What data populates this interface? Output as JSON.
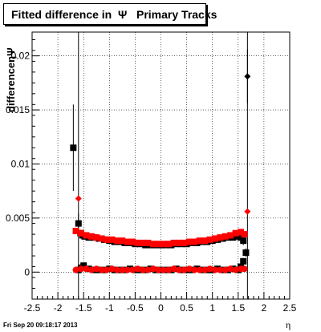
{
  "title": "Fitted difference in  Ψ   Primary Tracks",
  "footer": "Fri Sep 20 09:18:17 2013",
  "chart_data": {
    "type": "scatter",
    "title": "Fitted difference in  Ψ   Primary Tracks",
    "xlabel": "η",
    "ylabel": "differenceηΨ",
    "xlim": [
      -2.5,
      2.5
    ],
    "ylim": [
      -0.0025,
      0.0222
    ],
    "grid": true,
    "x_ticks": [
      -2.5,
      -2,
      -1.5,
      -1,
      -0.5,
      0,
      0.5,
      1,
      1.5,
      2,
      2.5
    ],
    "x_tick_labels": [
      "-2.5",
      "-2",
      "-1.5",
      "-1",
      "-0.5",
      "0",
      "0.5",
      "1",
      "1.5",
      "2",
      "2.5"
    ],
    "y_ticks": [
      0,
      0.005,
      0.01,
      0.015,
      0.02
    ],
    "y_tick_labels": [
      "0",
      "0.005",
      "0.01",
      "0.015",
      "0.02"
    ],
    "vlines": [
      -1.6,
      1.68
    ],
    "series": [
      {
        "color": "#000000",
        "marker": "square",
        "x": [
          -1.7,
          -1.6,
          -1.56,
          -1.52,
          -1.48,
          -1.4,
          -1.3,
          -1.2,
          -1.1,
          -1.0,
          -0.9,
          -0.8,
          -0.7,
          -0.6,
          -0.5,
          -0.4,
          -0.3,
          -0.2,
          -0.1,
          0.0,
          0.1,
          0.2,
          0.3,
          0.4,
          0.5,
          0.6,
          0.7,
          0.8,
          0.9,
          1.0,
          1.1,
          1.2,
          1.3,
          1.4,
          1.5,
          1.55,
          1.6
        ],
        "y": [
          0.0115,
          0.0045,
          0.0036,
          0.0034,
          0.0033,
          0.0032,
          0.0032,
          0.0031,
          0.003,
          0.0029,
          0.0028,
          0.0028,
          0.0027,
          0.0027,
          0.0026,
          0.0026,
          0.0025,
          0.0025,
          0.0025,
          0.0025,
          0.0025,
          0.0025,
          0.0026,
          0.0026,
          0.0026,
          0.0027,
          0.0027,
          0.0028,
          0.0028,
          0.0029,
          0.003,
          0.0031,
          0.0032,
          0.0032,
          0.0033,
          0.0032,
          0.0029
        ],
        "yerr": [
          0.004,
          0.0009,
          0.0003,
          0.0002,
          0.0002,
          0.0002,
          0.0002,
          0.0002,
          0.0002,
          0.0002,
          0.0002,
          0.0002,
          0.0002,
          0.0002,
          0.0002,
          0.0002,
          0.0002,
          0.0002,
          0.0002,
          0.0002,
          0.0002,
          0.0002,
          0.0002,
          0.0002,
          0.0002,
          0.0002,
          0.0002,
          0.0002,
          0.0002,
          0.0002,
          0.0002,
          0.0002,
          0.0002,
          0.0002,
          0.0002,
          0.0003,
          0.0004
        ]
      },
      {
        "color": "#000000",
        "marker": "square",
        "x": [
          -1.6,
          -1.55,
          -1.5,
          -1.4,
          -1.3,
          -1.2,
          -1.1,
          -1.0,
          -0.9,
          -0.8,
          -0.7,
          -0.6,
          -0.5,
          -0.4,
          -0.3,
          -0.2,
          -0.1,
          0.0,
          0.1,
          0.2,
          0.3,
          0.4,
          0.5,
          0.6,
          0.7,
          0.8,
          0.9,
          1.0,
          1.1,
          1.2,
          1.3,
          1.4,
          1.5,
          1.55,
          1.6,
          1.65
        ],
        "y": [
          0.0002,
          0.0004,
          0.0006,
          0.0003,
          0.0002,
          0.0002,
          0.0002,
          0.0003,
          0.0002,
          0.0002,
          0.0002,
          0.0003,
          0.0002,
          0.0002,
          0.0002,
          0.0003,
          0.0002,
          0.0002,
          0.0002,
          0.0002,
          0.0003,
          0.0002,
          0.0002,
          0.0002,
          0.0003,
          0.0002,
          0.0002,
          0.0002,
          0.0003,
          0.0002,
          0.0002,
          0.0003,
          0.0002,
          0.0005,
          0.001,
          0.0018
        ],
        "yerr": [
          0.0003,
          0.0002,
          0.0002,
          0.0001,
          0.0001,
          0.0001,
          0.0001,
          0.0001,
          0.0001,
          0.0001,
          0.0001,
          0.0001,
          0.0001,
          0.0001,
          0.0001,
          0.0001,
          0.0001,
          0.0001,
          0.0001,
          0.0001,
          0.0001,
          0.0001,
          0.0001,
          0.0001,
          0.0001,
          0.0001,
          0.0001,
          0.0001,
          0.0001,
          0.0001,
          0.0001,
          0.0001,
          0.0001,
          0.0002,
          0.0003,
          0.0004
        ]
      },
      {
        "color": "#000000",
        "marker": "diamond",
        "x": [
          1.68
        ],
        "y": [
          0.0181
        ],
        "yerr": [
          0.0025
        ]
      },
      {
        "color": "#ff0000",
        "marker": "square",
        "x": [
          -1.65,
          -1.55,
          -1.45,
          -1.35,
          -1.25,
          -1.15,
          -1.05,
          -0.95,
          -0.85,
          -0.75,
          -0.65,
          -0.55,
          -0.45,
          -0.35,
          -0.25,
          -0.15,
          -0.05,
          0.05,
          0.15,
          0.25,
          0.35,
          0.45,
          0.55,
          0.65,
          0.75,
          0.85,
          0.95,
          1.05,
          1.15,
          1.25,
          1.35,
          1.45,
          1.55,
          1.62
        ],
        "y": [
          0.0038,
          0.0036,
          0.0034,
          0.0033,
          0.0032,
          0.0031,
          0.003,
          0.003,
          0.0029,
          0.0029,
          0.0028,
          0.0028,
          0.0027,
          0.0027,
          0.0027,
          0.0026,
          0.0026,
          0.0026,
          0.0026,
          0.0027,
          0.0027,
          0.0027,
          0.0028,
          0.0028,
          0.0029,
          0.0029,
          0.003,
          0.0031,
          0.0032,
          0.0033,
          0.0034,
          0.0036,
          0.0037,
          0.0035
        ],
        "yerr": [
          0.0001,
          0.0001,
          0.0001,
          0.0001,
          0.0001,
          0.0001,
          0.0001,
          0.0001,
          0.0001,
          0.0001,
          0.0001,
          0.0001,
          0.0001,
          0.0001,
          0.0001,
          0.0001,
          0.0001,
          0.0001,
          0.0001,
          0.0001,
          0.0001,
          0.0001,
          0.0001,
          0.0001,
          0.0001,
          0.0001,
          0.0001,
          0.0001,
          0.0001,
          0.0001,
          0.0001,
          0.0001,
          0.0001,
          0.0001
        ]
      },
      {
        "color": "#ff0000",
        "marker": "circle",
        "x": [
          -1.65,
          -1.55,
          -1.45,
          -1.35,
          -1.25,
          -1.15,
          -1.05,
          -0.95,
          -0.85,
          -0.75,
          -0.65,
          -0.55,
          -0.45,
          -0.35,
          -0.25,
          -0.15,
          -0.05,
          0.05,
          0.15,
          0.25,
          0.35,
          0.45,
          0.55,
          0.65,
          0.75,
          0.85,
          0.95,
          1.05,
          1.15,
          1.25,
          1.35,
          1.45,
          1.55,
          1.62
        ],
        "y": [
          0.0002,
          0.0003,
          0.0003,
          0.0002,
          0.0003,
          0.0002,
          0.0002,
          0.0003,
          0.0002,
          0.0002,
          0.0002,
          0.0002,
          0.0003,
          0.0002,
          0.0002,
          0.0003,
          0.0002,
          0.0002,
          0.0002,
          0.0003,
          0.0002,
          0.0002,
          0.0003,
          0.0002,
          0.0002,
          0.0002,
          0.0003,
          0.0002,
          0.0002,
          0.0002,
          0.0003,
          0.0002,
          0.0003,
          0.0003
        ],
        "yerr": [
          0.0001,
          0.0001,
          0.0001,
          0.0001,
          0.0001,
          0.0001,
          0.0001,
          0.0001,
          0.0001,
          0.0001,
          0.0001,
          0.0001,
          0.0001,
          0.0001,
          0.0001,
          0.0001,
          0.0001,
          0.0001,
          0.0001,
          0.0001,
          0.0001,
          0.0001,
          0.0001,
          0.0001,
          0.0001,
          0.0001,
          0.0001,
          0.0001,
          0.0001,
          0.0001,
          0.0001,
          0.0001,
          0.0001,
          0.0001
        ]
      },
      {
        "color": "#ff0000",
        "marker": "diamond",
        "x": [
          -1.6,
          1.68
        ],
        "y": [
          0.0068,
          0.0056
        ],
        "yerr": [
          0.0,
          0.0
        ]
      }
    ]
  }
}
